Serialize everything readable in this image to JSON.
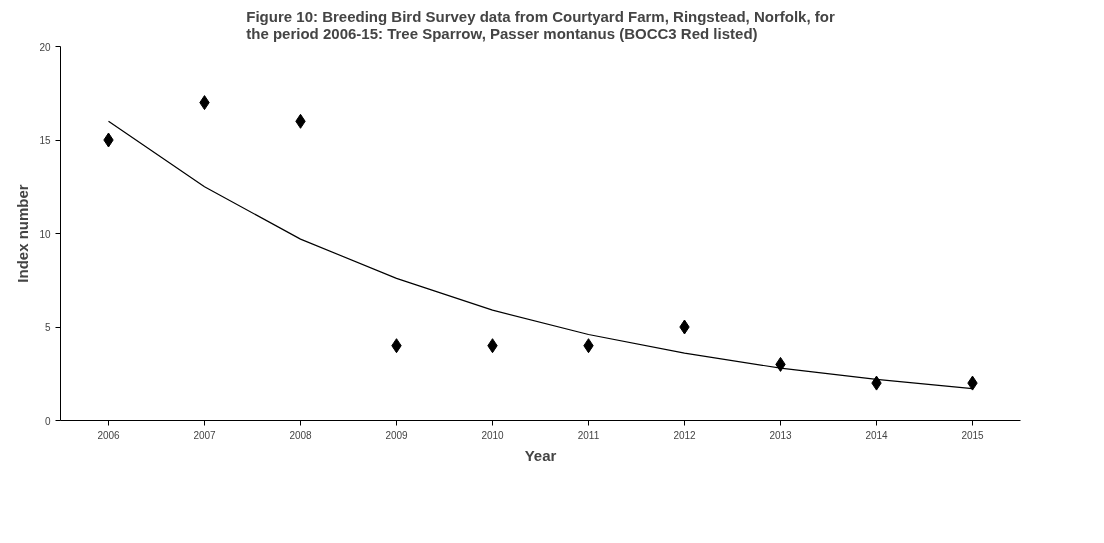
{
  "chart_data": {
    "type": "scatter",
    "title": "Figure 10: Breeding Bird Survey data from Courtyard Farm, Ringstead, Norfolk, for\nthe period 2006-15: Tree Sparrow, Passer montanus (BOCC3 Red listed)",
    "xlabel": "Year",
    "ylabel": "Index number",
    "categories": [
      "2006",
      "2007",
      "2008",
      "2009",
      "2010",
      "2011",
      "2012",
      "2013",
      "2014",
      "2015"
    ],
    "ylim": [
      0,
      20
    ],
    "yticks": [
      0,
      5,
      10,
      15,
      20
    ],
    "grid": false,
    "series": [
      {
        "color": "#000000",
        "marker": "diamond",
        "values": [
          15,
          17,
          16,
          4,
          4,
          4,
          5,
          3,
          2,
          2
        ]
      },
      {
        "type": "line",
        "color": "#000000",
        "marker": "none",
        "values": [
          16,
          12.5,
          9.7,
          7.6,
          5.9,
          4.6,
          3.6,
          2.8,
          2.2,
          1.7
        ],
        "line_style": "solid"
      }
    ]
  }
}
